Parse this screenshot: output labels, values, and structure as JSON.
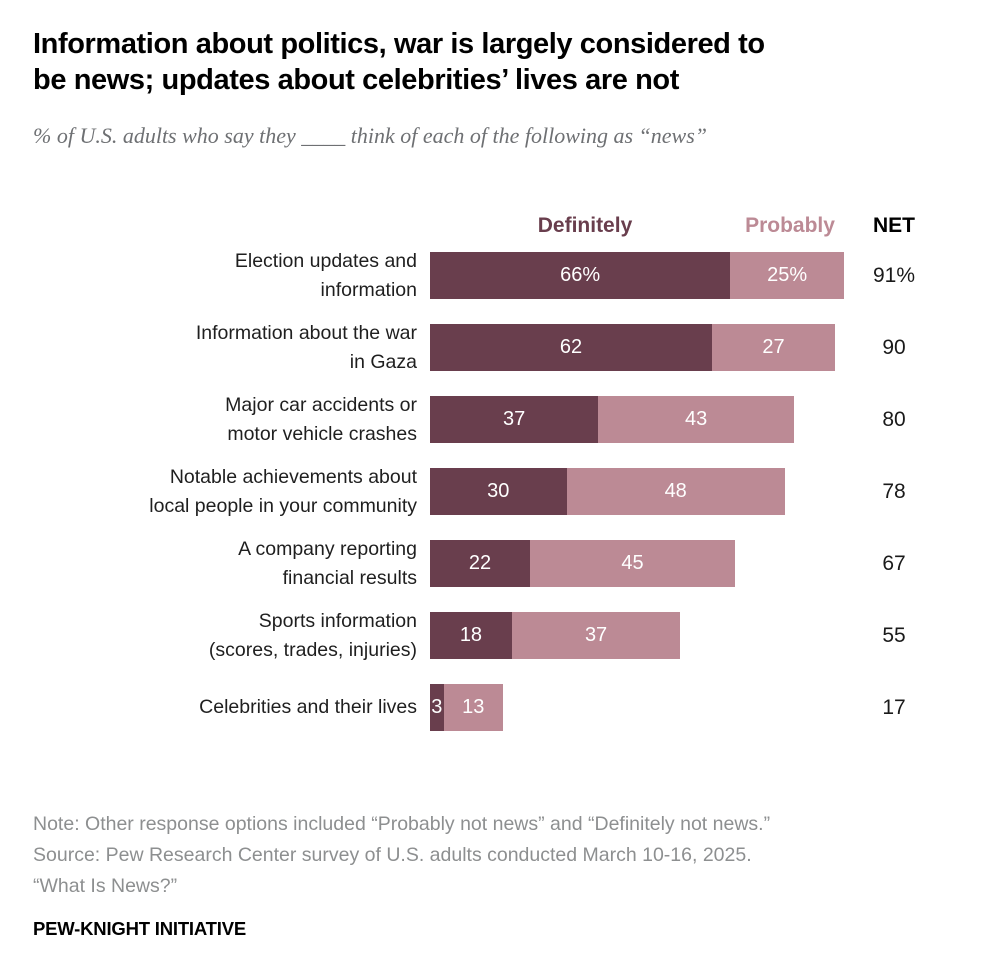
{
  "title": {
    "line1": "Information about politics, war is largely considered to",
    "line2": "be news; updates about celebrities’ lives are not"
  },
  "subtitle": "% of U.S. adults who say they ____ think of each of the following as “news”",
  "legend": {
    "definitely": "Definitely",
    "probably": "Probably",
    "net": "NET"
  },
  "chart_data": {
    "type": "bar",
    "orientation": "horizontal",
    "stacked": true,
    "x_max": 100,
    "categories": [
      "Election updates and information",
      "Information about the war in Gaza",
      "Major car accidents or motor vehicle crashes",
      "Notable achievements about local people in your community",
      "A company reporting financial results",
      "Sports information (scores, trades, injuries)",
      "Celebrities and their lives"
    ],
    "series": [
      {
        "name": "Definitely",
        "color": "#693e4d",
        "values": [
          66,
          62,
          37,
          30,
          22,
          18,
          3
        ]
      },
      {
        "name": "Probably",
        "color": "#bc8a95",
        "values": [
          25,
          27,
          43,
          48,
          45,
          37,
          13
        ]
      }
    ],
    "net_values": [
      91,
      90,
      80,
      78,
      67,
      55,
      17
    ],
    "rows": [
      {
        "label_lines": [
          "Election updates and",
          "information"
        ],
        "definitely_text": "66%",
        "probably_text": "25%",
        "net_text": "91%"
      },
      {
        "label_lines": [
          "Information about the war",
          "in Gaza"
        ],
        "definitely_text": "62",
        "probably_text": "27",
        "net_text": "90"
      },
      {
        "label_lines": [
          "Major car accidents or",
          "motor vehicle crashes"
        ],
        "definitely_text": "37",
        "probably_text": "43",
        "net_text": "80"
      },
      {
        "label_lines": [
          "Notable achievements about",
          "local people in your community"
        ],
        "definitely_text": "30",
        "probably_text": "48",
        "net_text": "78"
      },
      {
        "label_lines": [
          "A company reporting",
          "financial results"
        ],
        "definitely_text": "22",
        "probably_text": "45",
        "net_text": "67"
      },
      {
        "label_lines": [
          "Sports information",
          "(scores, trades, injuries)"
        ],
        "definitely_text": "18",
        "probably_text": "37",
        "net_text": "55"
      },
      {
        "label_lines": [
          "Celebrities and their lives"
        ],
        "definitely_text": "3",
        "probably_text": "13",
        "net_text": "17"
      }
    ]
  },
  "footer": {
    "note": "Note: Other response options included “Probably not news” and “Definitely not news.”",
    "source": "Source: Pew Research Center survey of U.S. adults conducted March 10-16, 2025.",
    "study": "“What Is News?”",
    "brand": "PEW-KNIGHT INITIATIVE"
  }
}
